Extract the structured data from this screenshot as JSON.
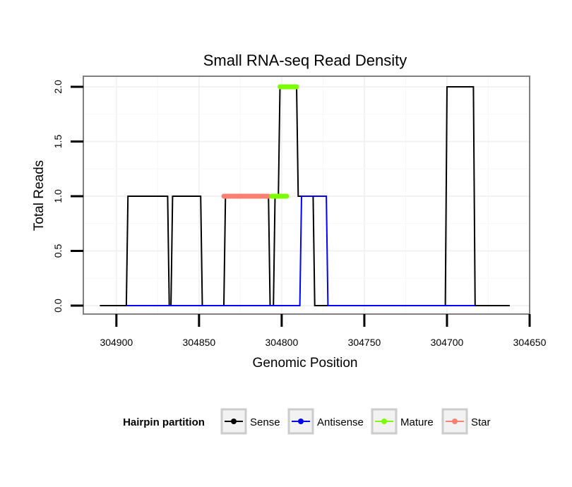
{
  "chart_data": {
    "type": "line",
    "title": "Small RNA-seq Read Density",
    "xlabel": "Genomic Position",
    "ylabel": "Total Reads",
    "xlim": [
      304920,
      304650
    ],
    "ylim": [
      0,
      2.1
    ],
    "x_reversed": true,
    "x_ticks": [
      304900,
      304850,
      304800,
      304750,
      304700,
      304650
    ],
    "x_tick_labels": [
      "304900",
      "304850",
      "304800",
      "304750",
      "304700",
      "304650"
    ],
    "y_ticks": [
      0,
      0.5,
      1,
      1.5,
      2
    ],
    "y_tick_labels": [
      "0.0",
      "0.5",
      "1.0",
      "1.5",
      "2.0"
    ],
    "grid": true,
    "legend": {
      "title": "Hairpin partition",
      "position": "bottom",
      "entries": [
        {
          "label": "Sense",
          "color": "#000000"
        },
        {
          "label": "Antisense",
          "color": "#0000ff"
        },
        {
          "label": "Mature",
          "color": "#7cfc00"
        },
        {
          "label": "Star",
          "color": "#fa8072"
        }
      ]
    },
    "series": [
      {
        "name": "Sense",
        "color": "#000000",
        "points": [
          [
            304910,
            0
          ],
          [
            304894,
            0
          ],
          [
            304893,
            1
          ],
          [
            304869,
            1
          ],
          [
            304868,
            0
          ],
          [
            304867,
            0
          ],
          [
            304866,
            1
          ],
          [
            304849,
            1
          ],
          [
            304848,
            0
          ],
          [
            304835,
            0
          ],
          [
            304834,
            1
          ],
          [
            304808,
            1
          ],
          [
            304807,
            0
          ],
          [
            304805,
            0
          ],
          [
            304804,
            1
          ],
          [
            304802,
            1
          ],
          [
            304801,
            2
          ],
          [
            304791,
            2
          ],
          [
            304790,
            1
          ],
          [
            304781,
            1
          ],
          [
            304780,
            0
          ],
          [
            304701,
            0
          ],
          [
            304700,
            2
          ],
          [
            304684,
            2
          ],
          [
            304683,
            0
          ],
          [
            304662,
            0
          ]
        ]
      },
      {
        "name": "Antisense",
        "color": "#0000ff",
        "points": [
          [
            304894,
            0
          ],
          [
            304789,
            0
          ],
          [
            304788,
            1
          ],
          [
            304773,
            1
          ],
          [
            304772,
            0
          ],
          [
            304683,
            0
          ]
        ]
      },
      {
        "name": "Mature",
        "color": "#7cfc00",
        "segments": [
          {
            "x": [
              304801,
              304791
            ],
            "y": 2
          },
          {
            "x": [
              304806,
              304797
            ],
            "y": 1
          }
        ]
      },
      {
        "name": "Star",
        "color": "#fa8072",
        "segments": [
          {
            "x": [
              304835,
              304808
            ],
            "y": 1
          }
        ]
      }
    ]
  }
}
